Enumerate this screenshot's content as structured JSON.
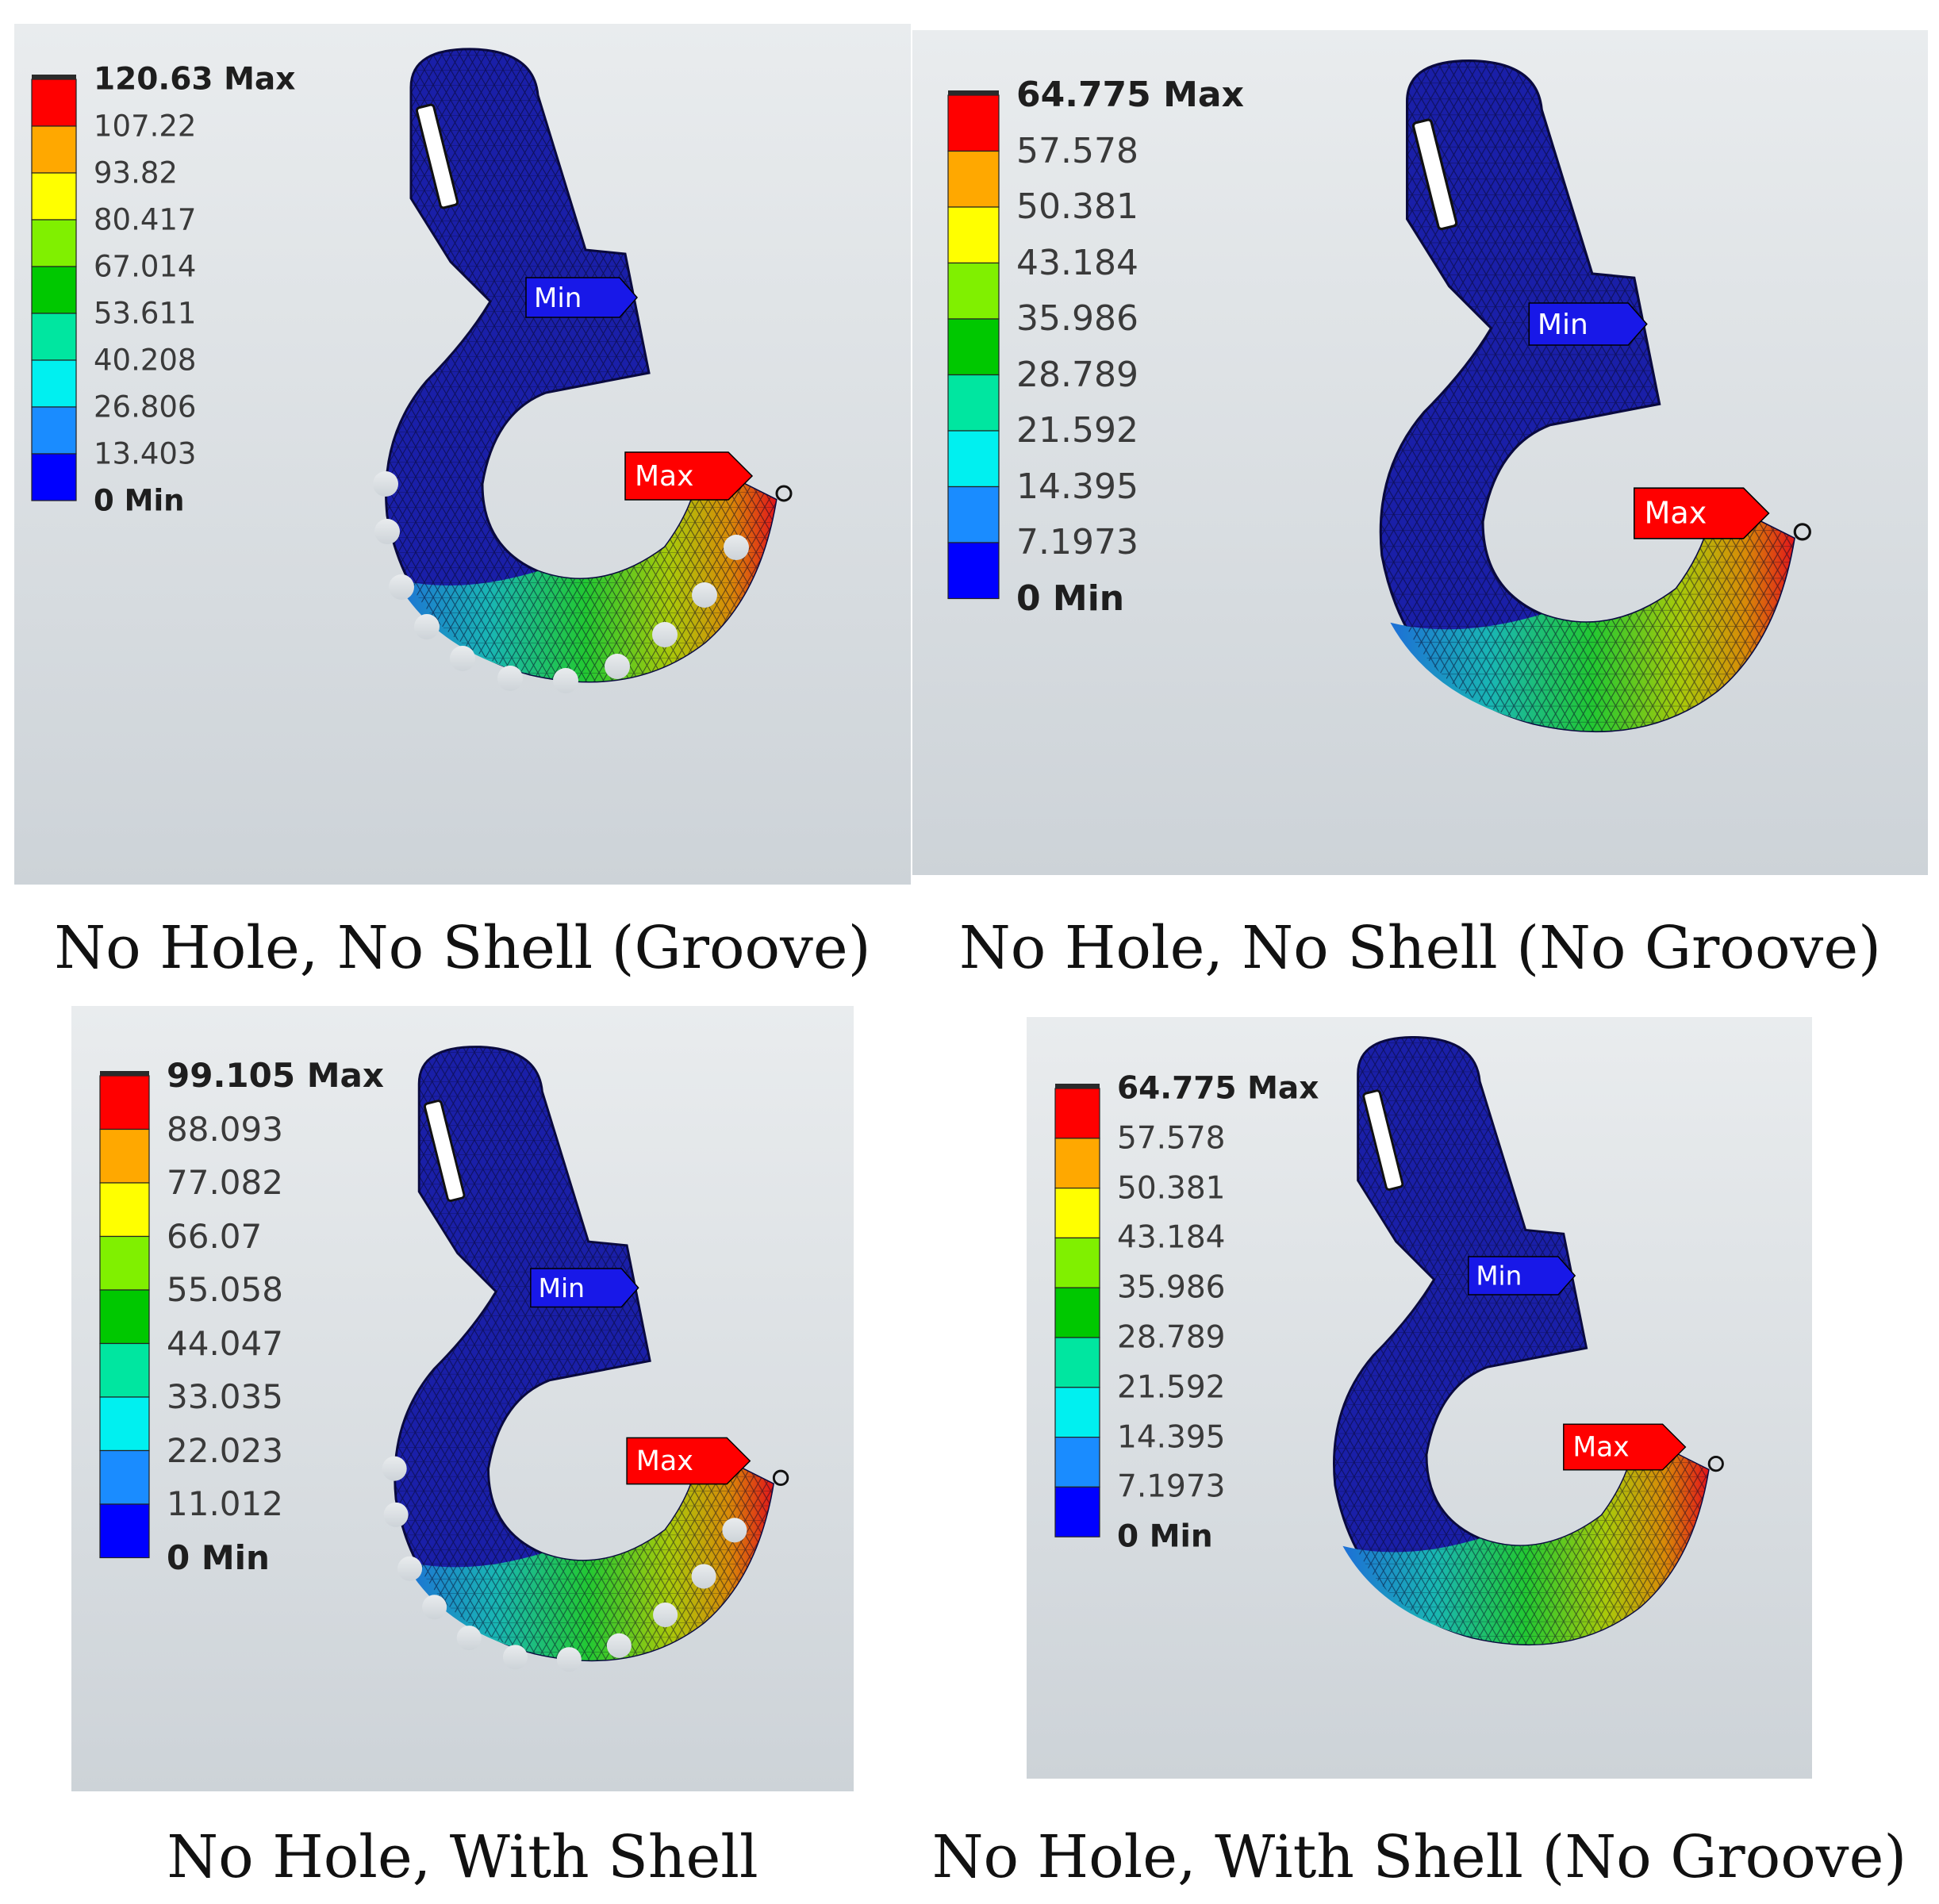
{
  "colors": {
    "background_light": "#e9ecee",
    "background_dark": "#cdd3d8",
    "mesh_blue": "#1a1fa8",
    "legend_bands": [
      "#0000ff",
      "#1a8cff",
      "#00f0f0",
      "#00e6a0",
      "#00c800",
      "#80f000",
      "#ffff00",
      "#ffa800",
      "#ff0000"
    ],
    "max_probe": "#ff0000",
    "min_probe": "#1818e8"
  },
  "panels": [
    {
      "id": "groove",
      "caption": "No Hole, No Shell (Groove)",
      "legend": [
        "120.63 Max",
        "107.22",
        "93.82",
        "80.417",
        "67.014",
        "53.611",
        "40.208",
        "26.806",
        "13.403",
        "0 Min"
      ],
      "grooved": true,
      "max_probe_label": "Max",
      "min_probe_label": "Min"
    },
    {
      "id": "no-groove",
      "caption": "No Hole, No Shell (No Groove)",
      "legend": [
        "64.775 Max",
        "57.578",
        "50.381",
        "43.184",
        "35.986",
        "28.789",
        "21.592",
        "14.395",
        "7.1973",
        "0 Min"
      ],
      "grooved": false,
      "max_probe_label": "Max",
      "min_probe_label": "Min"
    },
    {
      "id": "shell",
      "caption": "No Hole, With Shell",
      "legend": [
        "99.105 Max",
        "88.093",
        "77.082",
        "66.07",
        "55.058",
        "44.047",
        "33.035",
        "22.023",
        "11.012",
        "0 Min"
      ],
      "grooved": true,
      "max_probe_label": "Max",
      "min_probe_label": "Min"
    },
    {
      "id": "shell-no-groove",
      "caption": "No Hole, With Shell (No Groove)",
      "legend": [
        "64.775 Max",
        "57.578",
        "50.381",
        "43.184",
        "35.986",
        "28.789",
        "21.592",
        "14.395",
        "7.1973",
        "0 Min"
      ],
      "grooved": false,
      "max_probe_label": "Max",
      "min_probe_label": "Min"
    }
  ]
}
